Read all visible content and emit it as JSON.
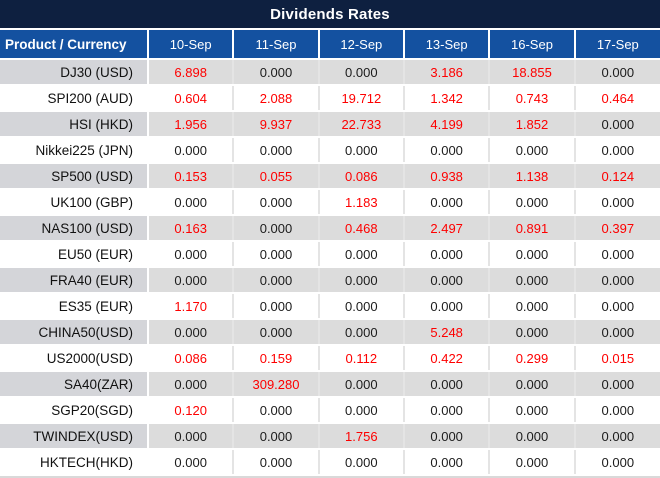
{
  "title": "Dividends Rates",
  "colors": {
    "title_bg": "#0e2040",
    "header_bg": "#1451a0",
    "stripe_bg": "#dcdcdc",
    "stripe_product_bg": "#d4d5d9",
    "nonzero_value": "#fe0000",
    "zero_value": "#1c1c1c",
    "edge_gray": "#d9d9d9"
  },
  "table": {
    "product_header": "Product / Currency",
    "date_columns": [
      "10-Sep",
      "11-Sep",
      "12-Sep",
      "13-Sep",
      "16-Sep",
      "17-Sep"
    ],
    "rows": [
      {
        "product": "DJ30 (USD)",
        "values": [
          "6.898",
          "0.000",
          "0.000",
          "3.186",
          "18.855",
          "0.000"
        ]
      },
      {
        "product": "SPI200 (AUD)",
        "values": [
          "0.604",
          "2.088",
          "19.712",
          "1.342",
          "0.743",
          "0.464"
        ]
      },
      {
        "product": "HSI (HKD)",
        "values": [
          "1.956",
          "9.937",
          "22.733",
          "4.199",
          "1.852",
          "0.000"
        ]
      },
      {
        "product": "Nikkei225 (JPN)",
        "values": [
          "0.000",
          "0.000",
          "0.000",
          "0.000",
          "0.000",
          "0.000"
        ]
      },
      {
        "product": "SP500 (USD)",
        "values": [
          "0.153",
          "0.055",
          "0.086",
          "0.938",
          "1.138",
          "0.124"
        ]
      },
      {
        "product": "UK100 (GBP)",
        "values": [
          "0.000",
          "0.000",
          "1.183",
          "0.000",
          "0.000",
          "0.000"
        ]
      },
      {
        "product": "NAS100 (USD)",
        "values": [
          "0.163",
          "0.000",
          "0.468",
          "2.497",
          "0.891",
          "0.397"
        ]
      },
      {
        "product": "EU50 (EUR)",
        "values": [
          "0.000",
          "0.000",
          "0.000",
          "0.000",
          "0.000",
          "0.000"
        ]
      },
      {
        "product": "FRA40 (EUR)",
        "values": [
          "0.000",
          "0.000",
          "0.000",
          "0.000",
          "0.000",
          "0.000"
        ]
      },
      {
        "product": "ES35 (EUR)",
        "values": [
          "1.170",
          "0.000",
          "0.000",
          "0.000",
          "0.000",
          "0.000"
        ]
      },
      {
        "product": "CHINA50(USD)",
        "values": [
          "0.000",
          "0.000",
          "0.000",
          "5.248",
          "0.000",
          "0.000"
        ]
      },
      {
        "product": "US2000(USD)",
        "values": [
          "0.086",
          "0.159",
          "0.112",
          "0.422",
          "0.299",
          "0.015"
        ]
      },
      {
        "product": "SA40(ZAR)",
        "values": [
          "0.000",
          "309.280",
          "0.000",
          "0.000",
          "0.000",
          "0.000"
        ]
      },
      {
        "product": "SGP20(SGD)",
        "values": [
          "0.120",
          "0.000",
          "0.000",
          "0.000",
          "0.000",
          "0.000"
        ]
      },
      {
        "product": "TWINDEX(USD)",
        "values": [
          "0.000",
          "0.000",
          "1.756",
          "0.000",
          "0.000",
          "0.000"
        ]
      },
      {
        "product": "HKTECH(HKD)",
        "values": [
          "0.000",
          "0.000",
          "0.000",
          "0.000",
          "0.000",
          "0.000"
        ]
      }
    ]
  }
}
